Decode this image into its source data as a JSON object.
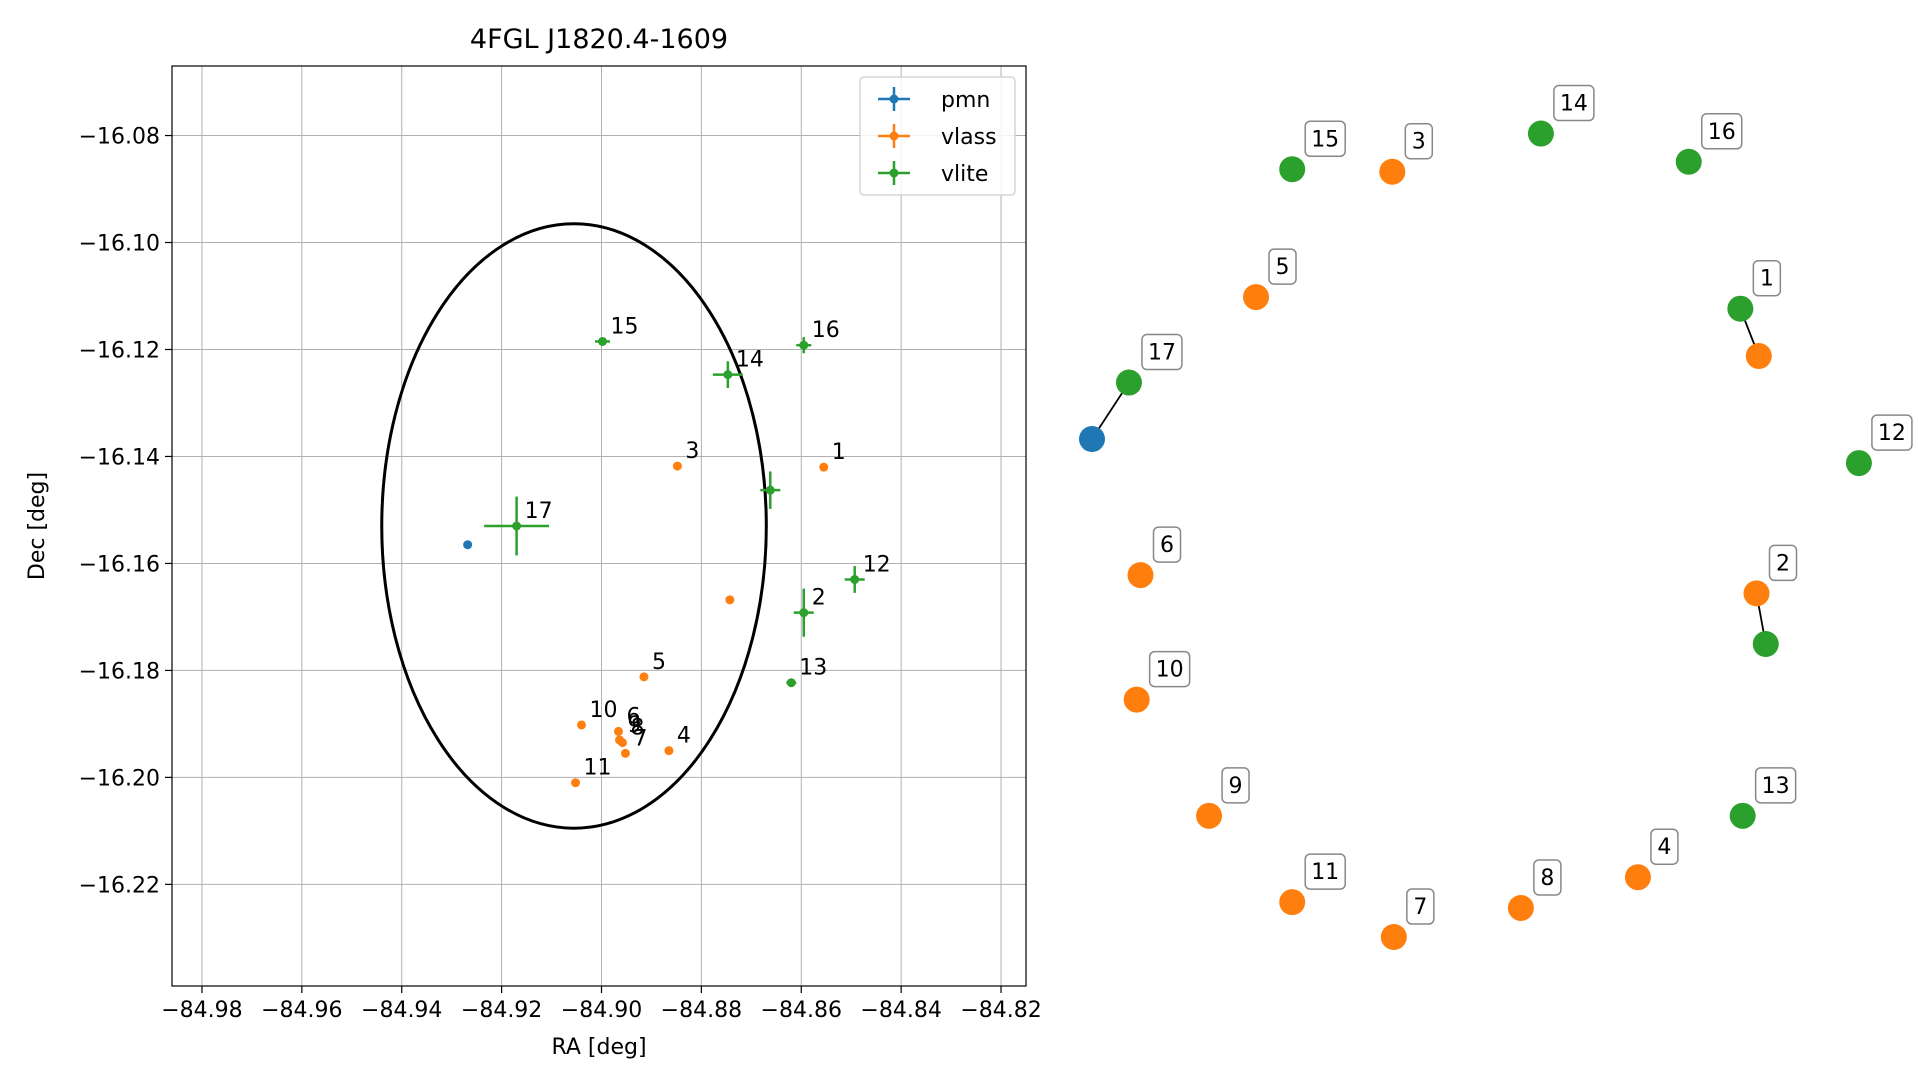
{
  "chart_data": [
    {
      "type": "scatter",
      "title": "4FGL J1820.4-1609",
      "xlabel": "RA [deg]",
      "ylabel": "Dec [deg]",
      "xlim": [
        -84.986,
        -84.815
      ],
      "ylim": [
        -16.239,
        -16.067
      ],
      "xticks": [
        -84.98,
        -84.96,
        -84.94,
        -84.92,
        -84.9,
        -84.88,
        -84.86,
        -84.84,
        -84.82
      ],
      "xtick_labels": [
        "−84.98",
        "−84.96",
        "−84.94",
        "−84.92",
        "−84.90",
        "−84.88",
        "−84.86",
        "−84.84",
        "−84.82"
      ],
      "yticks": [
        -16.08,
        -16.1,
        -16.12,
        -16.14,
        -16.16,
        -16.18,
        -16.2,
        -16.22
      ],
      "ytick_labels": [
        "−16.08",
        "−16.10",
        "−16.12",
        "−16.14",
        "−16.16",
        "−16.18",
        "−16.20",
        "−16.22"
      ],
      "grid": true,
      "legend": {
        "position": "top-right",
        "entries": [
          {
            "name": "pmn",
            "color": "#1f77b4"
          },
          {
            "name": "vlass",
            "color": "#ff7f0e"
          },
          {
            "name": "vlite",
            "color": "#2ca02c"
          }
        ]
      },
      "ellipse": {
        "center": [
          -84.9055,
          -16.153
        ],
        "semi_width_ra": 0.0385,
        "semi_height_dec": 0.0565,
        "color": "#000000"
      },
      "series": [
        {
          "name": "pmn",
          "color": "#1f77b4",
          "points": [
            {
              "ra": -84.9268,
              "dec": -16.1565,
              "label": ""
            }
          ]
        },
        {
          "name": "vlass",
          "color": "#ff7f0e",
          "points": [
            {
              "ra": -84.8555,
              "dec": -16.142,
              "label": "1"
            },
            {
              "ra": -84.8743,
              "dec": -16.1668,
              "label": ""
            },
            {
              "ra": -84.8848,
              "dec": -16.1418,
              "label": "3"
            },
            {
              "ra": -84.8865,
              "dec": -16.195,
              "label": "4"
            },
            {
              "ra": -84.8915,
              "dec": -16.1812,
              "label": "5"
            },
            {
              "ra": -84.8966,
              "dec": -16.1914,
              "label": "6"
            },
            {
              "ra": -84.8952,
              "dec": -16.1955,
              "label": "7"
            },
            {
              "ra": -84.8958,
              "dec": -16.1935,
              "label": "8"
            },
            {
              "ra": -84.8964,
              "dec": -16.193,
              "label": "9"
            },
            {
              "ra": -84.904,
              "dec": -16.1902,
              "label": "10"
            },
            {
              "ra": -84.9052,
              "dec": -16.201,
              "label": "11"
            }
          ]
        },
        {
          "name": "vlite",
          "color": "#2ca02c",
          "points": [
            {
              "ra": -84.8595,
              "dec": -16.1692,
              "label": "2",
              "xerr": 0.002,
              "yerr": 0.0045
            },
            {
              "ra": -84.8493,
              "dec": -16.163,
              "label": "12",
              "xerr": 0.002,
              "yerr": 0.0025
            },
            {
              "ra": -84.862,
              "dec": -16.1823,
              "label": "13",
              "xerr": 0.001,
              "yerr": 0.0005
            },
            {
              "ra": -84.8747,
              "dec": -16.1247,
              "label": "14",
              "xerr": 0.003,
              "yerr": 0.0025
            },
            {
              "ra": -84.8998,
              "dec": -16.1185,
              "label": "15",
              "xerr": 0.0015,
              "yerr": 0.0005
            },
            {
              "ra": -84.8595,
              "dec": -16.1192,
              "label": "16",
              "xerr": 0.0015,
              "yerr": 0.0015
            },
            {
              "ra": -84.917,
              "dec": -16.153,
              "label": "17",
              "xerr": 0.0065,
              "yerr": 0.0055
            },
            {
              "ra": -84.8662,
              "dec": -16.1463,
              "label": "",
              "xerr": 0.002,
              "yerr": 0.0035
            }
          ]
        }
      ]
    },
    {
      "type": "scatter",
      "nodes": [
        {
          "label": "1",
          "color": "#2ca02c",
          "x": 0.842,
          "y": 0.757
        },
        {
          "label": "",
          "color": "#ff7f0e",
          "x": 0.866,
          "y": 0.7
        },
        {
          "label": "2",
          "color": "#ff7f0e",
          "x": 0.863,
          "y": 0.414
        },
        {
          "label": "",
          "color": "#2ca02c",
          "x": 0.875,
          "y": 0.353
        },
        {
          "label": "3",
          "color": "#ff7f0e",
          "x": 0.39,
          "y": 0.922
        },
        {
          "label": "4",
          "color": "#ff7f0e",
          "x": 0.709,
          "y": 0.072
        },
        {
          "label": "5",
          "color": "#ff7f0e",
          "x": 0.213,
          "y": 0.771
        },
        {
          "label": "6",
          "color": "#ff7f0e",
          "x": 0.063,
          "y": 0.436
        },
        {
          "label": "7",
          "color": "#ff7f0e",
          "x": 0.392,
          "y": 0.0
        },
        {
          "label": "8",
          "color": "#ff7f0e",
          "x": 0.557,
          "y": 0.035
        },
        {
          "label": "9",
          "color": "#ff7f0e",
          "x": 0.152,
          "y": 0.146
        },
        {
          "label": "10",
          "color": "#ff7f0e",
          "x": 0.058,
          "y": 0.286
        },
        {
          "label": "11",
          "color": "#ff7f0e",
          "x": 0.26,
          "y": 0.042
        },
        {
          "label": "12",
          "color": "#2ca02c",
          "x": 0.996,
          "y": 0.571
        },
        {
          "label": "13",
          "color": "#2ca02c",
          "x": 0.845,
          "y": 0.146
        },
        {
          "label": "14",
          "color": "#2ca02c",
          "x": 0.583,
          "y": 0.968
        },
        {
          "label": "15",
          "color": "#2ca02c",
          "x": 0.26,
          "y": 0.925
        },
        {
          "label": "16",
          "color": "#2ca02c",
          "x": 0.775,
          "y": 0.934
        },
        {
          "label": "17",
          "color": "#2ca02c",
          "x": 0.048,
          "y": 0.668
        },
        {
          "label": "",
          "color": "#1f77b4",
          "x": 0.0,
          "y": 0.6
        }
      ],
      "links": [
        [
          0,
          1
        ],
        [
          2,
          3
        ],
        [
          18,
          19
        ]
      ]
    }
  ]
}
